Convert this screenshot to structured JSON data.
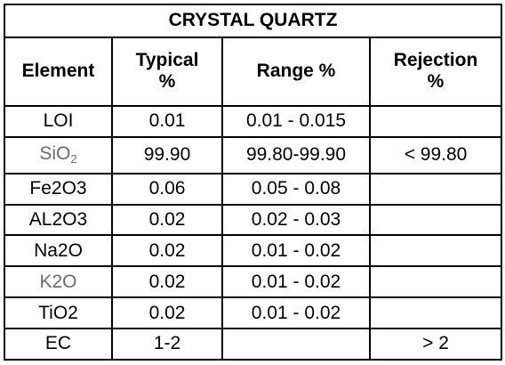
{
  "title": "CRYSTAL QUARTZ",
  "headers": {
    "element": "Element",
    "typical_line1": "Typical",
    "typical_line2": "%",
    "range": "Range %",
    "rejection_line1": "Rejection",
    "rejection_line2": "%"
  },
  "rows": [
    {
      "element": "LOI",
      "typical": "0.01",
      "range": "0.01 - 0.015",
      "rejection": ""
    },
    {
      "element_main": "SiO",
      "element_sub": "2",
      "typical": "99.90",
      "range": "99.80-99.90",
      "rejection": "< 99.80"
    },
    {
      "element": "Fe2O3",
      "typical": "0.06",
      "range": "0.05 - 0.08",
      "rejection": ""
    },
    {
      "element": "AL2O3",
      "typical": "0.02",
      "range": "0.02 - 0.03",
      "rejection": ""
    },
    {
      "element": "Na2O",
      "typical": "0.02",
      "range": "0.01 - 0.02",
      "rejection": ""
    },
    {
      "element": "K2O",
      "typical": "0.02",
      "range": "0.01 - 0.02",
      "rejection": ""
    },
    {
      "element": "TiO2",
      "typical": "0.02",
      "range": "0.01 - 0.02",
      "rejection": ""
    },
    {
      "element": "EC",
      "typical": "1-2",
      "range": "",
      "rejection": "> 2"
    }
  ]
}
